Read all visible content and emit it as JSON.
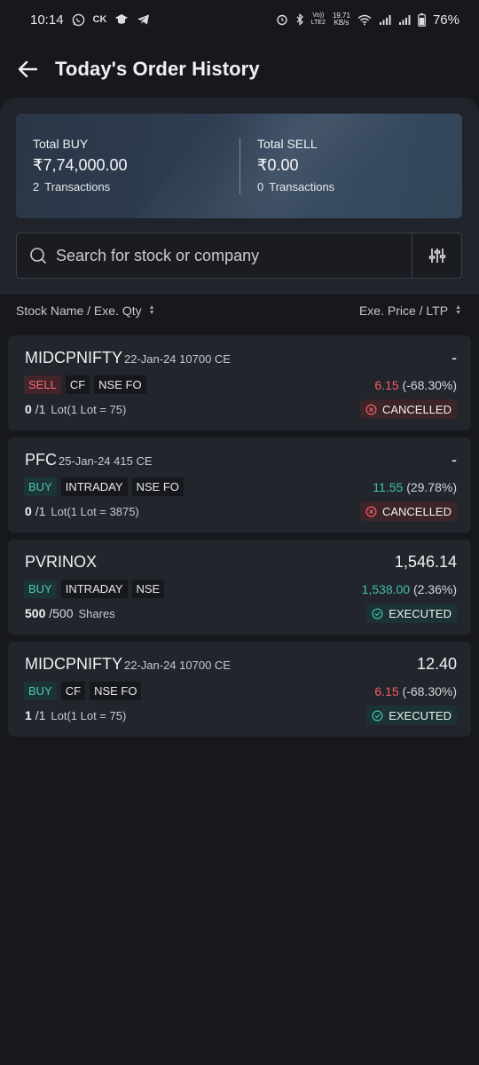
{
  "status_bar": {
    "time": "10:14",
    "carrier_text": "CK",
    "volte_label_top": "Vo))",
    "volte_label_bottom": "LTE2",
    "speed_top": "19.71",
    "speed_bottom": "KB/s",
    "battery": "76%"
  },
  "header": {
    "title": "Today's Order History"
  },
  "summary": {
    "buy": {
      "label": "Total BUY",
      "amount": "₹7,74,000.00",
      "count": "2",
      "tx_label": "Transactions"
    },
    "sell": {
      "label": "Total SELL",
      "amount": "₹0.00",
      "count": "0",
      "tx_label": "Transactions"
    }
  },
  "search": {
    "placeholder": "Search for stock or company"
  },
  "sort": {
    "left_label": "Stock Name / Exe. Qty",
    "right_label": "Exe. Price / LTP"
  },
  "orders": [
    {
      "symbol": "MIDCPNIFTY",
      "sub": "22-Jan-24 10700 CE",
      "price": "-",
      "side": "SELL",
      "product": "CF",
      "exchange": "NSE FO",
      "ltp": "6.15",
      "change": "(-68.30%)",
      "filled": "0",
      "total": "/1",
      "unit": "Lot(1 Lot = 75)",
      "status": "CANCELLED"
    },
    {
      "symbol": "PFC",
      "sub": "25-Jan-24 415 CE",
      "price": "-",
      "side": "BUY",
      "product": "INTRADAY",
      "exchange": "NSE FO",
      "ltp": "11.55",
      "change": "(29.78%)",
      "filled": "0",
      "total": "/1",
      "unit": "Lot(1 Lot = 3875)",
      "status": "CANCELLED"
    },
    {
      "symbol": "PVRINOX",
      "sub": "",
      "price": "1,546.14",
      "side": "BUY",
      "product": "INTRADAY",
      "exchange": "NSE",
      "ltp": "1,538.00",
      "change": "(2.36%)",
      "filled": "500",
      "total": "/500",
      "unit": "Shares",
      "status": "EXECUTED"
    },
    {
      "symbol": "MIDCPNIFTY",
      "sub": "22-Jan-24 10700 CE",
      "price": "12.40",
      "side": "BUY",
      "product": "CF",
      "exchange": "NSE FO",
      "ltp": "6.15",
      "change": "(-68.30%)",
      "filled": "1",
      "total": "/1",
      "unit": "Lot(1 Lot = 75)",
      "status": "EXECUTED"
    }
  ],
  "colors": {
    "background": "#16181e",
    "card": "#22252c",
    "sell": "#ef5f64",
    "buy": "#41bfae"
  }
}
